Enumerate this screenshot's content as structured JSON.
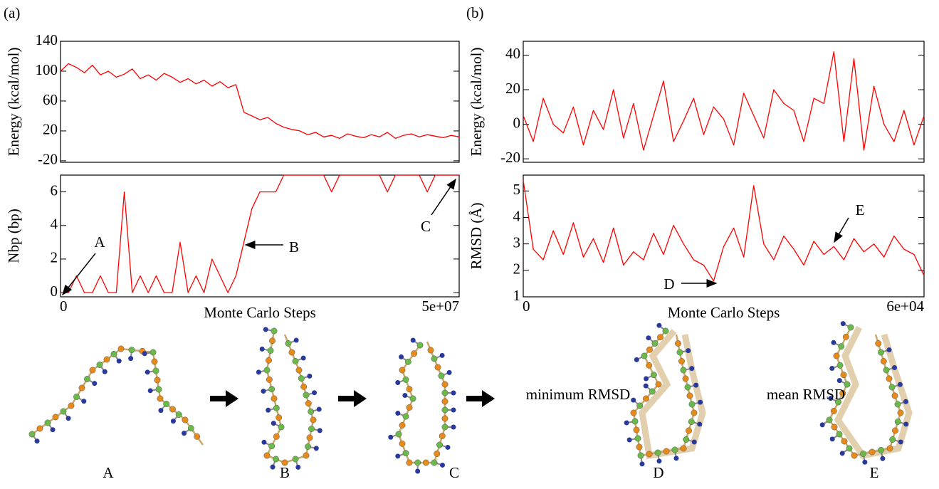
{
  "chart_data": [
    {
      "type": "line",
      "panel_label": "(a)",
      "ylabel": "Energy (kcal/mol)",
      "color": "#ff0000",
      "x": [
        0,
        1000000,
        2000000,
        3000000,
        4000000,
        5000000,
        6000000,
        7000000,
        8000000,
        9000000,
        10000000,
        11000000,
        12000000,
        13000000,
        14000000,
        15000000,
        16000000,
        17000000,
        18000000,
        19000000,
        20000000,
        21000000,
        22000000,
        23000000,
        24000000,
        25000000,
        26000000,
        27000000,
        28000000,
        29000000,
        30000000,
        31000000,
        32000000,
        33000000,
        34000000,
        35000000,
        36000000,
        37000000,
        38000000,
        39000000,
        40000000,
        41000000,
        42000000,
        43000000,
        44000000,
        45000000,
        46000000,
        47000000,
        48000000,
        49000000,
        50000000
      ],
      "values": [
        100,
        110,
        105,
        98,
        108,
        95,
        100,
        92,
        96,
        103,
        90,
        95,
        88,
        97,
        92,
        85,
        90,
        83,
        88,
        80,
        86,
        78,
        82,
        45,
        40,
        35,
        38,
        30,
        25,
        22,
        20,
        15,
        18,
        12,
        14,
        10,
        16,
        13,
        11,
        15,
        12,
        18,
        10,
        14,
        16,
        12,
        15,
        13,
        11,
        14,
        12
      ],
      "xlim": [
        0,
        50000000
      ],
      "ylim": [
        -22,
        140
      ],
      "yticks": [
        -20,
        20,
        60,
        100,
        140
      ]
    },
    {
      "type": "line",
      "ylabel": "Nbp (bp)",
      "xlabel": "Monte Carlo Steps",
      "color": "#ff0000",
      "x": [
        0,
        1000000,
        2000000,
        3000000,
        4000000,
        5000000,
        6000000,
        7000000,
        8000000,
        9000000,
        10000000,
        11000000,
        12000000,
        13000000,
        14000000,
        15000000,
        16000000,
        17000000,
        18000000,
        19000000,
        20000000,
        21000000,
        22000000,
        23000000,
        24000000,
        25000000,
        26000000,
        27000000,
        28000000,
        29000000,
        30000000,
        31000000,
        32000000,
        33000000,
        34000000,
        35000000,
        36000000,
        37000000,
        38000000,
        39000000,
        40000000,
        41000000,
        42000000,
        43000000,
        44000000,
        45000000,
        46000000,
        47000000,
        48000000,
        49000000,
        50000000
      ],
      "values": [
        0,
        0,
        1,
        0,
        0,
        1,
        0,
        0,
        6,
        0,
        1,
        0,
        1,
        0,
        0,
        3,
        0,
        1,
        0,
        2,
        1,
        0,
        1,
        3,
        5,
        6,
        6,
        6,
        7,
        7,
        7,
        7,
        7,
        7,
        6,
        7,
        7,
        7,
        7,
        7,
        7,
        6,
        7,
        7,
        7,
        7,
        6,
        7,
        7,
        7,
        7
      ],
      "xlim": [
        0,
        50000000
      ],
      "ylim": [
        -0.25,
        7
      ],
      "yticks": [
        0,
        2,
        4,
        6
      ],
      "xticks": [
        0,
        {
          "value": 50000000,
          "label": "5e+07"
        }
      ],
      "annotations": [
        "A",
        "B",
        "C"
      ]
    },
    {
      "type": "line",
      "panel_label": "(b)",
      "ylabel": "Energy (kcal/mol)",
      "color": "#ff0000",
      "x": [
        0,
        1500,
        3000,
        4500,
        6000,
        7500,
        9000,
        10500,
        12000,
        13500,
        15000,
        16500,
        18000,
        19500,
        21000,
        22500,
        24000,
        25500,
        27000,
        28500,
        30000,
        31500,
        33000,
        34500,
        36000,
        37500,
        39000,
        40500,
        42000,
        43500,
        45000,
        46500,
        48000,
        49500,
        51000,
        52500,
        54000,
        55500,
        57000,
        58500,
        60000
      ],
      "values": [
        5,
        -10,
        15,
        0,
        -5,
        10,
        -12,
        8,
        -3,
        20,
        -8,
        12,
        -15,
        5,
        25,
        -10,
        2,
        15,
        -6,
        10,
        3,
        -12,
        18,
        5,
        -8,
        20,
        12,
        8,
        -10,
        15,
        12,
        42,
        -10,
        38,
        -15,
        22,
        0,
        -10,
        8,
        -12,
        5
      ],
      "xlim": [
        0,
        60000
      ],
      "ylim": [
        -22,
        48
      ],
      "yticks": [
        -20,
        0,
        20,
        40
      ]
    },
    {
      "type": "line",
      "ylabel": "RMSD (Å)",
      "xlabel": "Monte Carlo Steps",
      "color": "#ff0000",
      "x": [
        0,
        1500,
        3000,
        4500,
        6000,
        7500,
        9000,
        10500,
        12000,
        13500,
        15000,
        16500,
        18000,
        19500,
        21000,
        22500,
        24000,
        25500,
        27000,
        28500,
        30000,
        31500,
        33000,
        34500,
        36000,
        37500,
        39000,
        40500,
        42000,
        43500,
        45000,
        46500,
        48000,
        49500,
        51000,
        52500,
        54000,
        55500,
        57000,
        58500,
        60000
      ],
      "values": [
        5.4,
        2.8,
        2.4,
        3.5,
        2.6,
        3.8,
        2.5,
        3.2,
        2.3,
        3.6,
        2.2,
        2.7,
        2.4,
        3.4,
        2.6,
        3.7,
        3.0,
        2.4,
        2.2,
        1.6,
        2.9,
        3.6,
        2.5,
        5.2,
        3.0,
        2.4,
        3.3,
        2.8,
        2.2,
        3.1,
        2.6,
        2.9,
        2.4,
        3.2,
        2.7,
        3.0,
        2.5,
        3.3,
        2.8,
        2.6,
        1.8
      ],
      "xlim": [
        0,
        60000
      ],
      "ylim": [
        1,
        5.6
      ],
      "yticks": [
        1,
        2,
        3,
        4,
        5
      ],
      "xticks": [
        0,
        {
          "value": 60000,
          "label": "6e+04"
        }
      ],
      "annotations": [
        "D",
        "E"
      ]
    }
  ],
  "structures": {
    "labels": [
      "A",
      "B",
      "C",
      "D",
      "E"
    ],
    "captions": [
      "minimum RMSD",
      "mean RMSD"
    ]
  }
}
